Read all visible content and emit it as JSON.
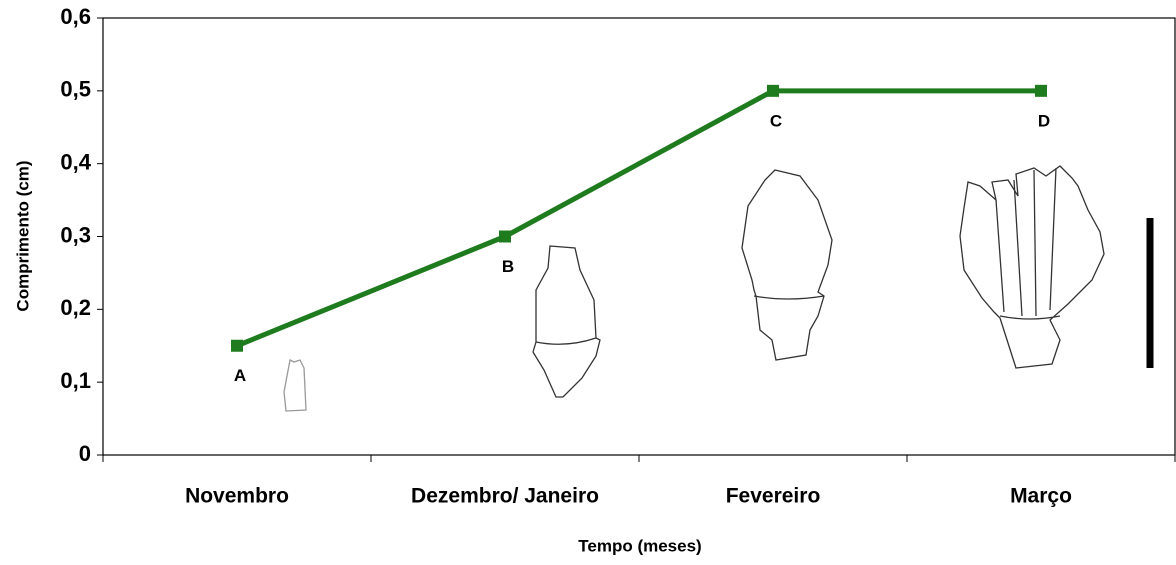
{
  "chart_data": {
    "type": "line",
    "x_label": "Tempo (meses)",
    "y_label": "Comprimento (cm)",
    "categories": [
      "Novembro",
      "Dezembro/ Janeiro",
      "Fevereiro",
      "Março"
    ],
    "values": [
      0.15,
      0.3,
      0.5,
      0.5
    ],
    "point_labels": [
      "A",
      "B",
      "C",
      "D"
    ],
    "color": "#1e7b1e",
    "ylim": [
      0,
      0.6
    ],
    "yticks": [
      0,
      {
        "value": 0.1,
        "label": "0,1"
      },
      {
        "value": 0.2,
        "label": "0,2"
      },
      {
        "value": 0.3,
        "label": "0,3"
      },
      {
        "value": 0.4,
        "label": "0,4"
      },
      {
        "value": 0.5,
        "label": "0,5"
      },
      {
        "value": 0.6,
        "label": "0,6"
      }
    ]
  }
}
